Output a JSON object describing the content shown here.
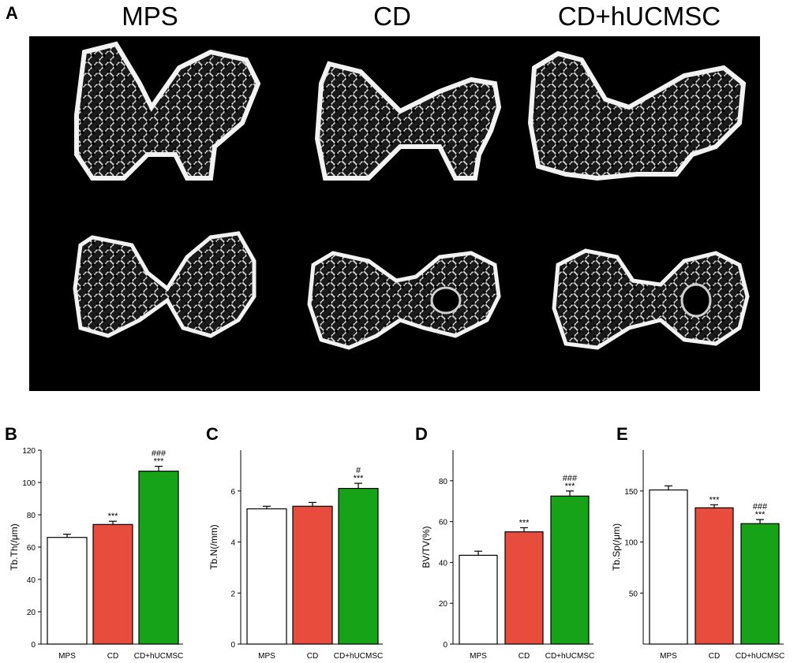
{
  "panel_a": {
    "letter": "A",
    "columns": [
      "MPS",
      "CD",
      "CD+hUCMSC"
    ]
  },
  "colors": {
    "MPS": "#ffffff",
    "CD": "#e74c3c",
    "CD+hUCMSC": "#17a318",
    "image_bg": "#000000"
  },
  "chart_data": [
    {
      "letter": "B",
      "type": "bar",
      "categories": [
        "MPS",
        "CD",
        "CD+hUCMSC"
      ],
      "values": [
        66,
        74,
        107
      ],
      "errors": [
        2,
        2,
        3
      ],
      "annotations": [
        [
          "",
          ""
        ],
        [
          "***",
          ""
        ],
        [
          "***",
          "###"
        ]
      ],
      "ylabel": "Tb.Th(/μm)",
      "ylim": [
        0,
        120
      ],
      "yticks": [
        0,
        20,
        40,
        60,
        80,
        100,
        120
      ]
    },
    {
      "letter": "C",
      "type": "bar",
      "categories": [
        "MPS",
        "CD",
        "CD+hUCMSC"
      ],
      "values": [
        5.3,
        5.4,
        6.1
      ],
      "errors": [
        0.1,
        0.15,
        0.2
      ],
      "annotations": [
        [
          "",
          ""
        ],
        [
          "",
          ""
        ],
        [
          "***",
          "#"
        ]
      ],
      "ylabel": "Tb.N(/mm)",
      "ylim": [
        0,
        7.6
      ],
      "yticks": [
        0,
        2,
        4,
        6
      ]
    },
    {
      "letter": "D",
      "type": "bar",
      "categories": [
        "MPS",
        "CD",
        "CD+hUCMSC"
      ],
      "values": [
        43.5,
        55,
        72.5
      ],
      "errors": [
        2,
        2,
        2.5
      ],
      "annotations": [
        [
          "",
          ""
        ],
        [
          "***",
          ""
        ],
        [
          "***",
          "###"
        ]
      ],
      "ylabel": "BV/TV(%)",
      "ylim": [
        0,
        95
      ],
      "yticks": [
        0,
        20,
        40,
        60,
        80
      ]
    },
    {
      "letter": "E",
      "type": "bar",
      "categories": [
        "MPS",
        "CD",
        "CD+hUCMSC"
      ],
      "values": [
        151,
        133.5,
        118
      ],
      "errors": [
        4,
        3,
        4
      ],
      "annotations": [
        [
          "",
          ""
        ],
        [
          "***",
          ""
        ],
        [
          "***",
          "###"
        ]
      ],
      "ylabel": "Tb.Sp(/μm)",
      "ylim": [
        0,
        190
      ],
      "yticks": [
        50,
        100,
        150
      ]
    }
  ]
}
